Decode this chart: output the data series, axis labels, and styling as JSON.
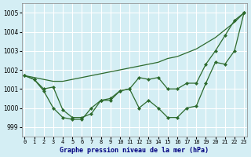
{
  "title": "Graphe pression niveau de la mer (hPa)",
  "background_color": "#d4eef4",
  "grid_color": "#ffffff",
  "line_color": "#2d6a2d",
  "x_labels": [
    "0",
    "1",
    "2",
    "3",
    "4",
    "5",
    "6",
    "7",
    "8",
    "9",
    "10",
    "11",
    "12",
    "13",
    "14",
    "15",
    "16",
    "17",
    "18",
    "19",
    "20",
    "21",
    "22",
    "23"
  ],
  "ylim": [
    998.5,
    1005.5
  ],
  "yticks": [
    999,
    1000,
    1001,
    1002,
    1003,
    1004,
    1005
  ],
  "series1": [
    1001.7,
    1001.6,
    1001.5,
    1001.4,
    1001.4,
    1001.5,
    1001.6,
    1001.7,
    1001.8,
    1001.9,
    1002.0,
    1002.1,
    1002.2,
    1002.3,
    1002.4,
    1002.6,
    1002.7,
    1002.9,
    1003.1,
    1003.4,
    1003.7,
    1004.1,
    1004.5,
    1005.0
  ],
  "series2": [
    1001.7,
    1001.5,
    1001.0,
    1001.1,
    999.9,
    999.5,
    999.5,
    999.7,
    1000.4,
    1000.4,
    1000.9,
    1001.0,
    1001.6,
    1001.5,
    1001.6,
    1001.0,
    1001.0,
    1001.3,
    1001.3,
    1002.3,
    1003.0,
    1003.8,
    1004.6,
    1005.0
  ],
  "series3": [
    1001.7,
    1001.5,
    1000.9,
    1000.0,
    999.5,
    999.4,
    999.4,
    1000.0,
    1000.4,
    1000.5,
    1000.9,
    1001.0,
    1000.0,
    1000.4,
    1000.0,
    999.5,
    999.5,
    1000.0,
    1000.1,
    1001.3,
    1002.4,
    1002.3,
    1003.0,
    1005.0
  ]
}
